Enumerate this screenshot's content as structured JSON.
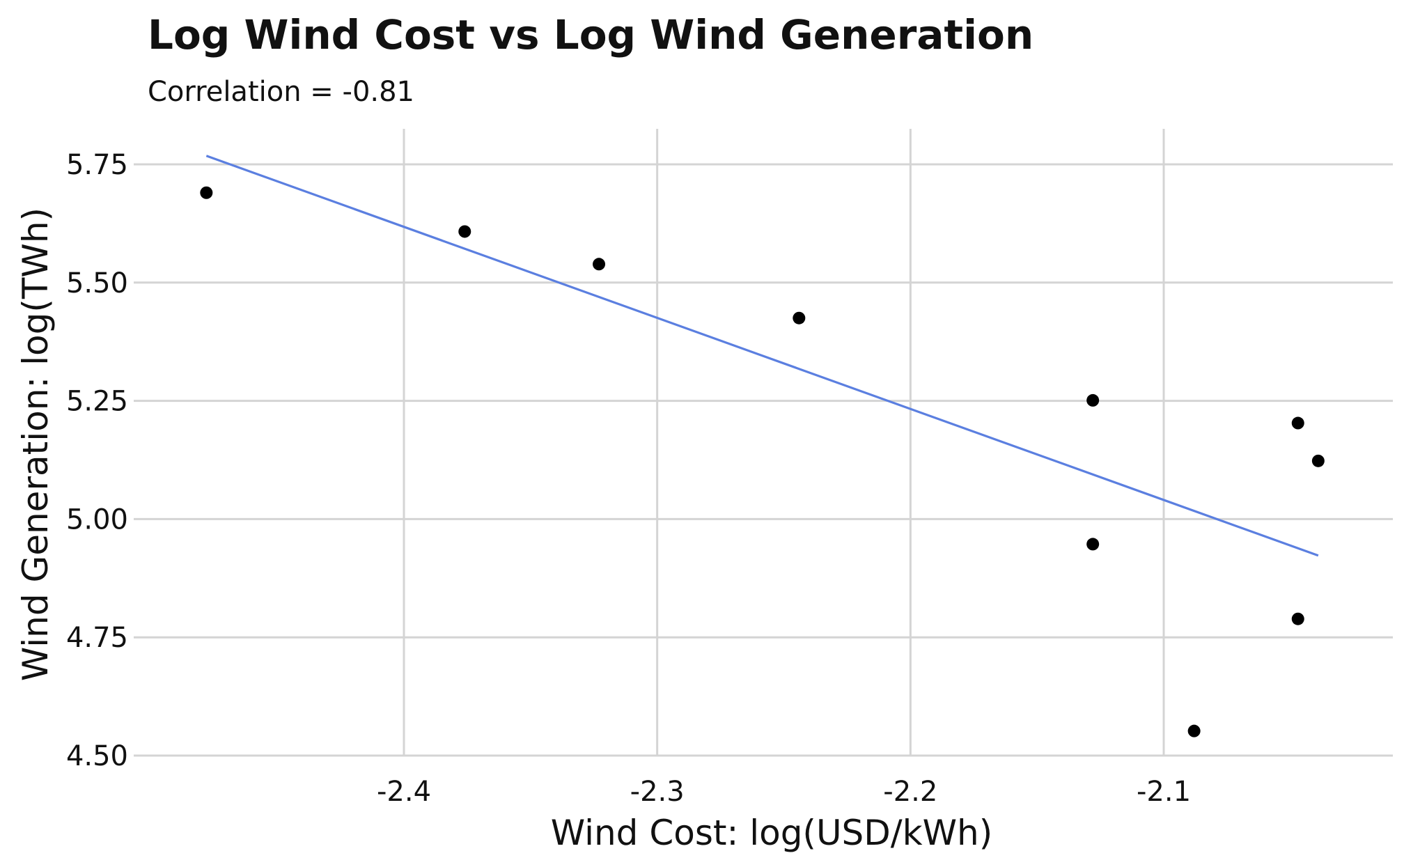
{
  "chart_data": {
    "type": "scatter",
    "title": "Log Wind Cost vs Log Wind Generation",
    "subtitle": "Correlation = -0.81",
    "xlabel": "Wind Cost: log(USD/kWh)",
    "ylabel": "Wind Generation: log(TWh)",
    "xlim": [
      -2.5,
      -2.02
    ],
    "ylim": [
      4.5,
      5.8
    ],
    "xticks": [
      -2.4,
      -2.3,
      -2.2,
      -2.1
    ],
    "xtick_labels": [
      "-2.4",
      "-2.3",
      "-2.2",
      "-2.1"
    ],
    "yticks": [
      4.5,
      4.75,
      5.0,
      5.25,
      5.5,
      5.75
    ],
    "ytick_labels": [
      "4.50",
      "4.75",
      "5.00",
      "5.25",
      "5.50",
      "5.75"
    ],
    "grid": true,
    "points": [
      {
        "x": -2.478,
        "y": 5.69
      },
      {
        "x": -2.376,
        "y": 5.608
      },
      {
        "x": -2.323,
        "y": 5.539
      },
      {
        "x": -2.244,
        "y": 5.425
      },
      {
        "x": -2.128,
        "y": 5.251
      },
      {
        "x": -2.128,
        "y": 4.947
      },
      {
        "x": -2.088,
        "y": 4.552
      },
      {
        "x": -2.047,
        "y": 5.203
      },
      {
        "x": -2.039,
        "y": 5.123
      },
      {
        "x": -2.047,
        "y": 4.789
      }
    ],
    "trendline": {
      "x": [
        -2.478,
        -2.039
      ],
      "y": [
        5.768,
        4.923
      ]
    },
    "colors": {
      "points": "#000000",
      "trendline": "#5b7fe0",
      "grid": "#d4d4d4"
    }
  }
}
